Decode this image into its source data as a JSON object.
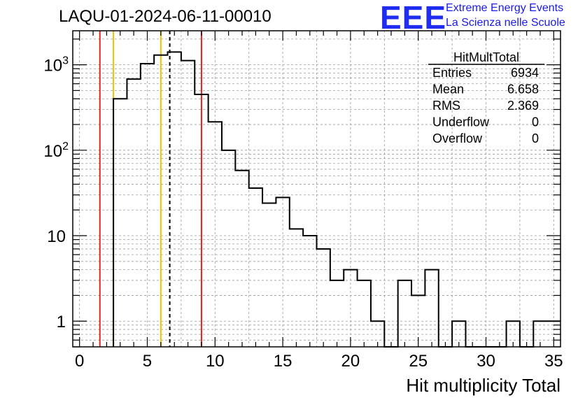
{
  "header": {
    "run_title": "LAQU-01-2024-06-11-00010",
    "logo_text": "EEE",
    "logo_line1": "Extreme Energy Events",
    "logo_line2": "La Scienza nelle Scuole"
  },
  "stats_box": {
    "title": "HitMultTotal",
    "rows": [
      {
        "label": "Entries",
        "value": "6934"
      },
      {
        "label": "Mean",
        "value": "6.658"
      },
      {
        "label": "RMS",
        "value": "2.369"
      },
      {
        "label": "Underflow",
        "value": "0"
      },
      {
        "label": "Overflow",
        "value": "0"
      }
    ]
  },
  "chart_data": {
    "type": "histogram",
    "title": "LAQU-01-2024-06-11-00010",
    "xlabel": "Hit multiplicity Total",
    "ylabel": "",
    "xlim": [
      -0.5,
      35.5
    ],
    "ylim": [
      0.5,
      2500
    ],
    "y_scale": "log",
    "grid": true,
    "bin_width": 1,
    "bin_centers": [
      0,
      1,
      2,
      3,
      4,
      5,
      6,
      7,
      8,
      9,
      10,
      11,
      12,
      13,
      14,
      15,
      16,
      17,
      18,
      19,
      20,
      21,
      22,
      23,
      24,
      25,
      26,
      27,
      28,
      29,
      30,
      31,
      32,
      33,
      34,
      35
    ],
    "counts": [
      0,
      0,
      0,
      400,
      680,
      1030,
      1300,
      1410,
      1120,
      450,
      215,
      100,
      58,
      36,
      24,
      28,
      12,
      10,
      7,
      3,
      4,
      3,
      1,
      0,
      3,
      2,
      4,
      0,
      1,
      0,
      0,
      0,
      1,
      0,
      1,
      1
    ],
    "x_ticks": [
      0,
      5,
      10,
      15,
      20,
      25,
      30,
      35
    ],
    "y_ticks": [
      {
        "value": 1,
        "label": "1"
      },
      {
        "value": 10,
        "label": "10"
      },
      {
        "value": 100,
        "label": "10",
        "exp": "2"
      },
      {
        "value": 1000,
        "label": "10",
        "exp": "3"
      }
    ],
    "vertical_lines": [
      {
        "x": 1.5,
        "color": "#e8211d",
        "style": "solid"
      },
      {
        "x": 2.5,
        "color": "#f2c200",
        "style": "solid"
      },
      {
        "x": 6.0,
        "color": "#f2c200",
        "style": "solid"
      },
      {
        "x": 6.658,
        "color": "#000000",
        "style": "dashed"
      },
      {
        "x": 9.0,
        "color": "#e8211d",
        "style": "solid"
      }
    ]
  }
}
